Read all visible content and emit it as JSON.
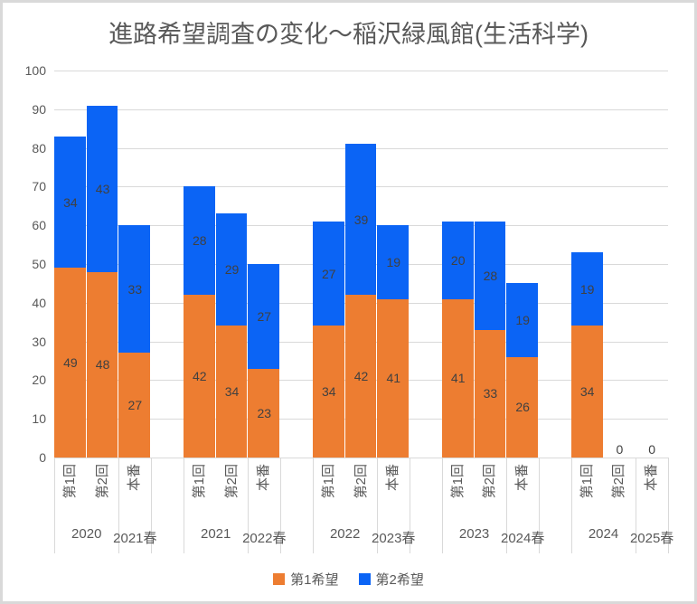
{
  "chart_data": {
    "type": "bar",
    "stacked": true,
    "title": "進路希望調査の変化～稲沢緑風館(生活科学)",
    "ylim": [
      0,
      100
    ],
    "ytick_step": 10,
    "grid": true,
    "legend_position": "bottom",
    "series": [
      {
        "name": "第1希望",
        "color": "#ED7D31"
      },
      {
        "name": "第2希望",
        "color": "#0B64F5"
      }
    ],
    "bar_labels": [
      "第1回",
      "第2回",
      "本番"
    ],
    "groups": [
      {
        "year": "2020",
        "spring": "2021春",
        "values": [
          [
            49,
            34
          ],
          [
            48,
            43
          ],
          [
            27,
            33
          ]
        ]
      },
      {
        "year": "2021",
        "spring": "2022春",
        "values": [
          [
            42,
            28
          ],
          [
            34,
            29
          ],
          [
            23,
            27
          ]
        ]
      },
      {
        "year": "2022",
        "spring": "2023春",
        "values": [
          [
            34,
            27
          ],
          [
            42,
            39
          ],
          [
            41,
            19
          ]
        ]
      },
      {
        "year": "2023",
        "spring": "2024春",
        "values": [
          [
            41,
            20
          ],
          [
            33,
            28
          ],
          [
            26,
            19
          ]
        ]
      },
      {
        "year": "2024",
        "spring": "2025春",
        "values": [
          [
            34,
            19
          ],
          [
            0,
            0
          ],
          [
            0,
            0
          ]
        ]
      }
    ],
    "zero_label": "0",
    "colors": {
      "gridline": "#D9D9D9",
      "axis_text": "#595959",
      "data_label": "#404040",
      "title_text": "#595959",
      "frame_border": "#D9D9D9"
    }
  }
}
